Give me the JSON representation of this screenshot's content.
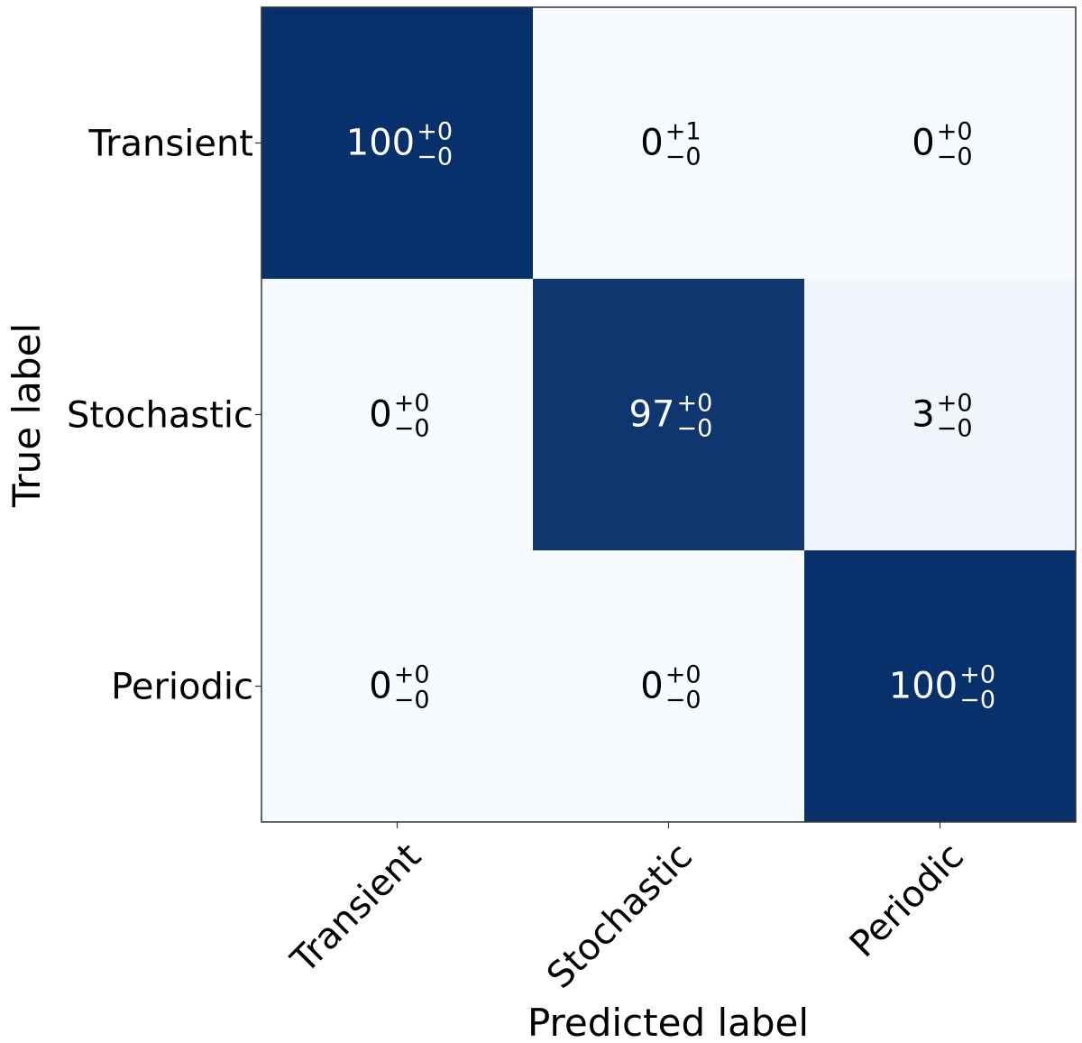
{
  "chart_data": {
    "type": "heatmap",
    "title": "",
    "xlabel": "Predicted label",
    "ylabel": "True label",
    "x_categories": [
      "Transient",
      "Stochastic",
      "Periodic"
    ],
    "y_categories": [
      "Transient",
      "Stochastic",
      "Periodic"
    ],
    "values": [
      [
        100,
        0,
        0
      ],
      [
        0,
        97,
        3
      ],
      [
        0,
        0,
        100
      ]
    ],
    "upper_errors": [
      [
        0,
        1,
        0
      ],
      [
        0,
        0,
        0
      ],
      [
        0,
        0,
        0
      ]
    ],
    "lower_errors": [
      [
        0,
        0,
        0
      ],
      [
        0,
        0,
        0
      ],
      [
        0,
        0,
        0
      ]
    ],
    "value_range": [
      0,
      100
    ],
    "colormap": "Blues",
    "colors": {
      "low": "#f7fbff",
      "high": "#08306b",
      "text_on_dark": "#ffffff",
      "text_on_light": "#000000"
    },
    "grid": false,
    "colorbar": false
  }
}
